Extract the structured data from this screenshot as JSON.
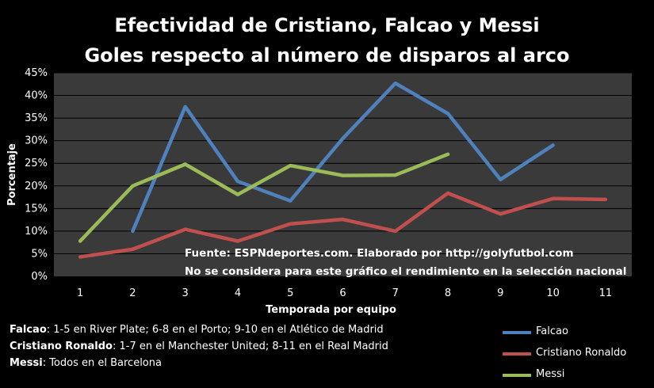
{
  "chart_data": {
    "type": "line",
    "title": "Efectividad de Cristiano, Falcao y Messi",
    "subtitle": "Goles respecto al número de disparos al arco",
    "xlabel": "Temporada por equipo",
    "ylabel": "Porcentaje",
    "categories": [
      "1",
      "2",
      "3",
      "4",
      "5",
      "6",
      "7",
      "8",
      "9",
      "10",
      "11"
    ],
    "y_ticks": [
      "0%",
      "5%",
      "10%",
      "15%",
      "20%",
      "25%",
      "30%",
      "35%",
      "40%",
      "45%"
    ],
    "ylim": [
      0,
      45
    ],
    "grid": true,
    "legend_position": "bottom-right",
    "series": [
      {
        "name": "Falcao",
        "color": "#4f81bd",
        "values": [
          null,
          10,
          37.5,
          21,
          16.7,
          30.5,
          42.7,
          36,
          21.4,
          29,
          null
        ]
      },
      {
        "name": "Cristiano Ronaldo",
        "color": "#c0504d",
        "values": [
          4.3,
          6,
          10.4,
          7.8,
          11.6,
          12.6,
          10,
          18.4,
          13.8,
          17.2,
          17
        ]
      },
      {
        "name": "Messi",
        "color": "#9bbb59",
        "values": [
          7.8,
          20,
          24.8,
          18.1,
          24.5,
          22.3,
          22.4,
          27,
          null,
          null,
          null
        ]
      }
    ],
    "annotations": [
      "Fuente: ESPNdeportes.com. Elaborado por http://golyfutbol.com",
      "No se considera para este gráfico el rendimiento  en la selección nacional"
    ]
  },
  "notes": [
    {
      "name": "Falcao",
      "text": ": 1-5 en River Plate; 6-8 en el Porto; 9-10 en el Atlético de Madrid"
    },
    {
      "name": "Cristiano Ronaldo",
      "text": ": 1-7 en el Manchester United; 8-11 en el Real Madrid"
    },
    {
      "name": "Messi",
      "text": ": Todos en el Barcelona"
    }
  ],
  "colors": {
    "background": "#000000",
    "plot_area": "#3a3a3a",
    "grid": "#000000",
    "text": "#ffffff"
  }
}
